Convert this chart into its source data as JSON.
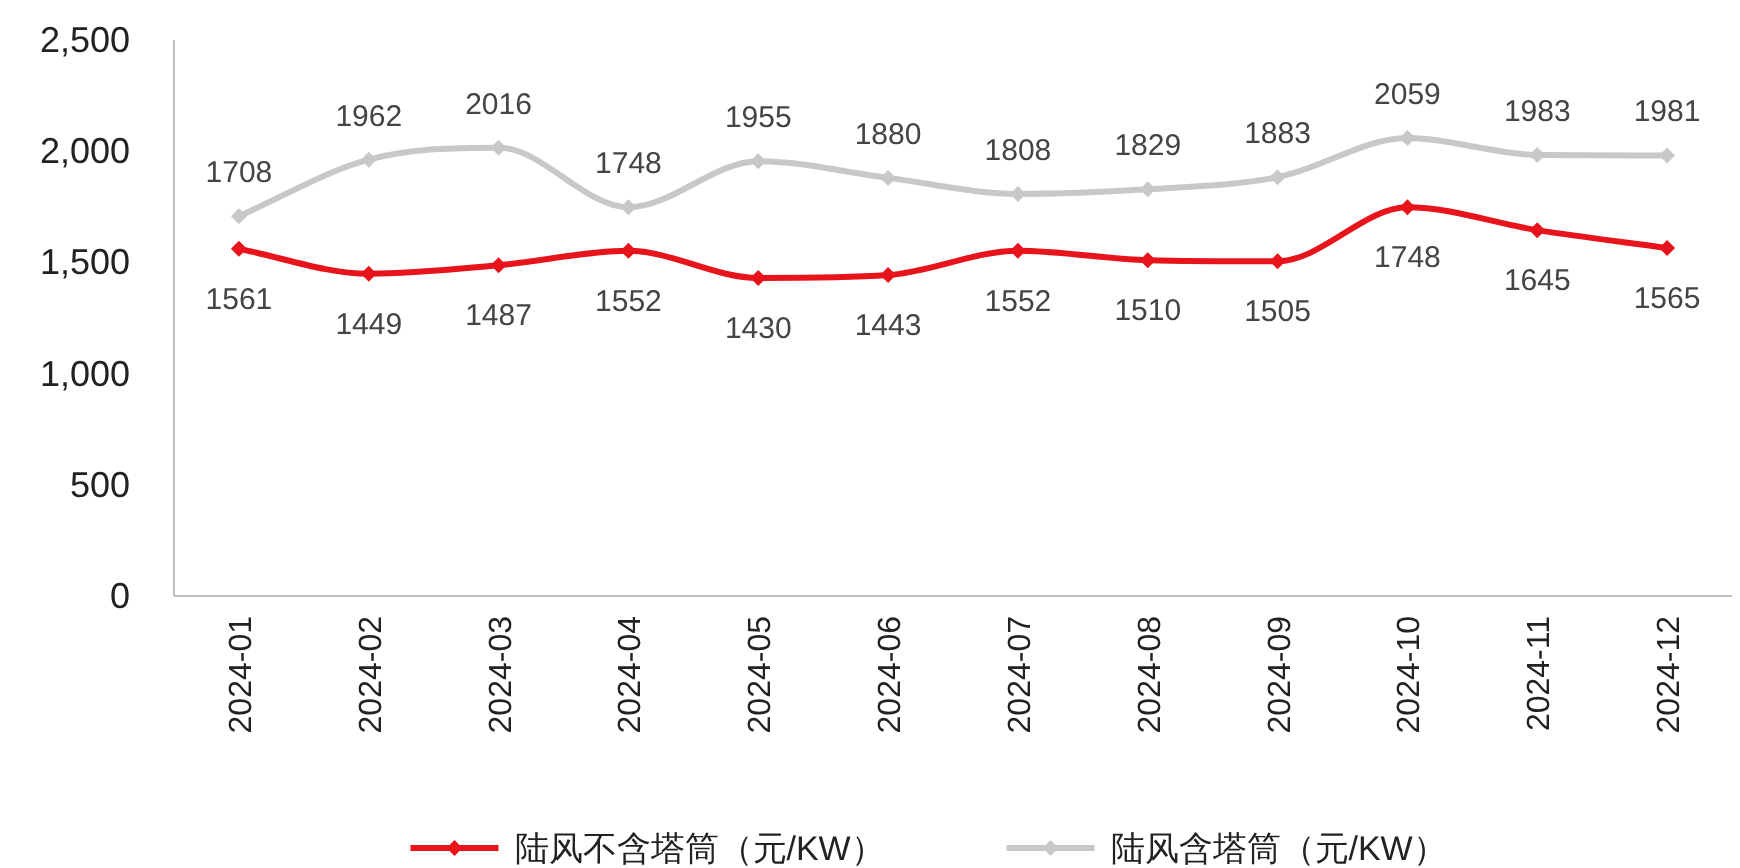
{
  "chart_data": {
    "type": "line",
    "categories": [
      "2024-01",
      "2024-02",
      "2024-03",
      "2024-04",
      "2024-05",
      "2024-06",
      "2024-07",
      "2024-08",
      "2024-09",
      "2024-10",
      "2024-11",
      "2024-12"
    ],
    "series": [
      {
        "name": "陆风不含塔筒（元/KW）",
        "color": "#e8141b",
        "values": [
          1561,
          1449,
          1487,
          1552,
          1430,
          1443,
          1552,
          1510,
          1505,
          1748,
          1645,
          1565
        ]
      },
      {
        "name": "陆风含塔筒（元/KW）",
        "color": "#c8c8c8",
        "values": [
          1708,
          1962,
          2016,
          1748,
          1955,
          1880,
          1808,
          1829,
          1883,
          2059,
          1983,
          1981
        ]
      }
    ],
    "ylim": [
      0,
      2500
    ],
    "yticks": [
      0,
      500,
      {
        "value": 1000,
        "label": "1,000"
      },
      {
        "value": 1500,
        "label": "1,500"
      },
      {
        "value": 2000,
        "label": "2,000"
      },
      {
        "value": 2500,
        "label": "2,500"
      }
    ],
    "grid": false,
    "legend": "bottom",
    "marker": "diamond",
    "line_style": "solid",
    "data_labels": true
  }
}
